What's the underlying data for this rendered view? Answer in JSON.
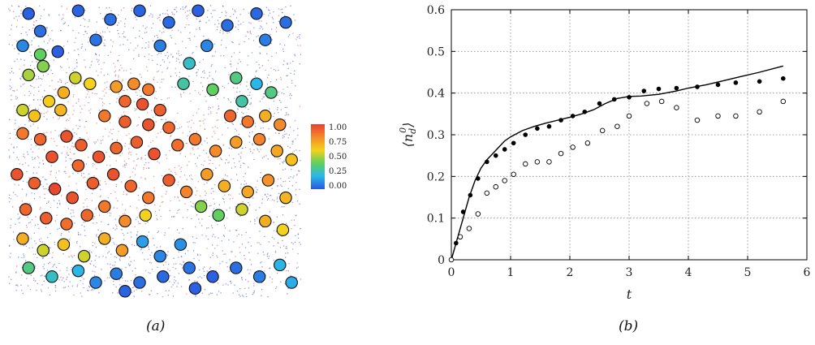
{
  "captions": {
    "a": "(a)",
    "b": "(b)"
  },
  "colorbar": {
    "ticks": [
      "1.00",
      "0.75",
      "0.50",
      "0.25",
      "0.00"
    ],
    "colors": [
      "#e8412f",
      "#f58a2a",
      "#f3d21c",
      "#5fd05f",
      "#2ab7e8",
      "#2a56e0"
    ]
  },
  "chart_data": [
    {
      "type": "scatter",
      "title": "",
      "panel": "(a)",
      "value_range": [
        0.0,
        1.0
      ],
      "points": [
        [
          0.07,
          0.03,
          0.02
        ],
        [
          0.11,
          0.09,
          0.05
        ],
        [
          0.05,
          0.14,
          0.1
        ],
        [
          0.11,
          0.17,
          0.4
        ],
        [
          0.17,
          0.16,
          0.02
        ],
        [
          0.12,
          0.21,
          0.45
        ],
        [
          0.07,
          0.24,
          0.5
        ],
        [
          0.23,
          0.25,
          0.55
        ],
        [
          0.28,
          0.27,
          0.6
        ],
        [
          0.37,
          0.28,
          0.75
        ],
        [
          0.43,
          0.27,
          0.8
        ],
        [
          0.48,
          0.29,
          0.85
        ],
        [
          0.19,
          0.3,
          0.7
        ],
        [
          0.14,
          0.33,
          0.62
        ],
        [
          0.05,
          0.36,
          0.55
        ],
        [
          0.09,
          0.38,
          0.65
        ],
        [
          0.18,
          0.36,
          0.68
        ],
        [
          0.4,
          0.33,
          0.9
        ],
        [
          0.46,
          0.34,
          0.95
        ],
        [
          0.52,
          0.36,
          0.92
        ],
        [
          0.33,
          0.38,
          0.85
        ],
        [
          0.4,
          0.4,
          0.92
        ],
        [
          0.48,
          0.41,
          0.95
        ],
        [
          0.55,
          0.42,
          0.9
        ],
        [
          0.6,
          0.27,
          0.3
        ],
        [
          0.7,
          0.29,
          0.4
        ],
        [
          0.78,
          0.25,
          0.35
        ],
        [
          0.85,
          0.27,
          0.2
        ],
        [
          0.9,
          0.3,
          0.35
        ],
        [
          0.8,
          0.33,
          0.3
        ],
        [
          0.76,
          0.38,
          0.9
        ],
        [
          0.82,
          0.4,
          0.85
        ],
        [
          0.88,
          0.38,
          0.7
        ],
        [
          0.93,
          0.41,
          0.8
        ],
        [
          0.05,
          0.44,
          0.85
        ],
        [
          0.11,
          0.46,
          0.9
        ],
        [
          0.2,
          0.45,
          0.95
        ],
        [
          0.25,
          0.48,
          0.92
        ],
        [
          0.15,
          0.52,
          0.95
        ],
        [
          0.24,
          0.55,
          0.9
        ],
        [
          0.31,
          0.52,
          0.95
        ],
        [
          0.37,
          0.49,
          0.9
        ],
        [
          0.44,
          0.47,
          0.92
        ],
        [
          0.5,
          0.51,
          0.95
        ],
        [
          0.58,
          0.48,
          0.88
        ],
        [
          0.64,
          0.46,
          0.85
        ],
        [
          0.71,
          0.5,
          0.8
        ],
        [
          0.78,
          0.47,
          0.75
        ],
        [
          0.86,
          0.46,
          0.82
        ],
        [
          0.92,
          0.5,
          0.72
        ],
        [
          0.97,
          0.53,
          0.65
        ],
        [
          0.03,
          0.58,
          0.95
        ],
        [
          0.09,
          0.61,
          0.92
        ],
        [
          0.16,
          0.63,
          0.98
        ],
        [
          0.22,
          0.66,
          0.95
        ],
        [
          0.29,
          0.61,
          0.92
        ],
        [
          0.36,
          0.58,
          0.95
        ],
        [
          0.42,
          0.62,
          0.9
        ],
        [
          0.48,
          0.66,
          0.85
        ],
        [
          0.55,
          0.6,
          0.92
        ],
        [
          0.61,
          0.64,
          0.82
        ],
        [
          0.68,
          0.58,
          0.75
        ],
        [
          0.74,
          0.62,
          0.7
        ],
        [
          0.82,
          0.64,
          0.72
        ],
        [
          0.89,
          0.6,
          0.78
        ],
        [
          0.95,
          0.66,
          0.68
        ],
        [
          0.06,
          0.7,
          0.9
        ],
        [
          0.13,
          0.73,
          0.92
        ],
        [
          0.2,
          0.75,
          0.88
        ],
        [
          0.27,
          0.72,
          0.9
        ],
        [
          0.33,
          0.69,
          0.85
        ],
        [
          0.4,
          0.74,
          0.8
        ],
        [
          0.47,
          0.72,
          0.6
        ],
        [
          0.66,
          0.69,
          0.45
        ],
        [
          0.72,
          0.72,
          0.4
        ],
        [
          0.8,
          0.7,
          0.55
        ],
        [
          0.88,
          0.74,
          0.7
        ],
        [
          0.94,
          0.77,
          0.6
        ],
        [
          0.05,
          0.8,
          0.7
        ],
        [
          0.12,
          0.84,
          0.55
        ],
        [
          0.19,
          0.82,
          0.65
        ],
        [
          0.26,
          0.86,
          0.55
        ],
        [
          0.33,
          0.8,
          0.7
        ],
        [
          0.39,
          0.84,
          0.75
        ],
        [
          0.46,
          0.81,
          0.15
        ],
        [
          0.52,
          0.86,
          0.1
        ],
        [
          0.59,
          0.82,
          0.12
        ],
        [
          0.07,
          0.9,
          0.35
        ],
        [
          0.15,
          0.93,
          0.25
        ],
        [
          0.24,
          0.91,
          0.2
        ],
        [
          0.3,
          0.95,
          0.1
        ],
        [
          0.37,
          0.92,
          0.08
        ],
        [
          0.45,
          0.95,
          0.05
        ],
        [
          0.53,
          0.93,
          0.04
        ],
        [
          0.62,
          0.9,
          0.06
        ],
        [
          0.7,
          0.93,
          0.02
        ],
        [
          0.78,
          0.9,
          0.05
        ],
        [
          0.86,
          0.93,
          0.08
        ],
        [
          0.93,
          0.89,
          0.2
        ],
        [
          0.97,
          0.95,
          0.18
        ],
        [
          0.64,
          0.97,
          0.02
        ],
        [
          0.4,
          0.98,
          0.03
        ],
        [
          0.24,
          0.02,
          0.03
        ],
        [
          0.35,
          0.05,
          0.05
        ],
        [
          0.45,
          0.02,
          0.03
        ],
        [
          0.55,
          0.06,
          0.04
        ],
        [
          0.65,
          0.02,
          0.02
        ],
        [
          0.75,
          0.07,
          0.05
        ],
        [
          0.85,
          0.03,
          0.04
        ],
        [
          0.95,
          0.06,
          0.05
        ],
        [
          0.3,
          0.12,
          0.06
        ],
        [
          0.52,
          0.14,
          0.08
        ],
        [
          0.68,
          0.14,
          0.1
        ],
        [
          0.88,
          0.12,
          0.08
        ],
        [
          0.62,
          0.2,
          0.25
        ]
      ]
    },
    {
      "type": "line",
      "title": "",
      "panel": "(b)",
      "xlabel": "t",
      "ylabel": "⟨n_d^0⟩",
      "xlim": [
        0,
        6
      ],
      "ylim": [
        0,
        0.6
      ],
      "xticks": [
        "0",
        "1",
        "2",
        "3",
        "4",
        "5",
        "6"
      ],
      "yticks": [
        "0",
        "0.1",
        "0.2",
        "0.3",
        "0.4",
        "0.5",
        "0.6"
      ],
      "grid": true,
      "series": [
        {
          "style": "line",
          "x": [
            0,
            0.1,
            0.2,
            0.3,
            0.4,
            0.5,
            0.6,
            0.7,
            0.8,
            0.9,
            1.0,
            1.2,
            1.4,
            1.6,
            1.8,
            2.0,
            2.2,
            2.4,
            2.6,
            2.8,
            3.0,
            3.2,
            3.5,
            3.8,
            4.0,
            4.3,
            4.6,
            4.9,
            5.2,
            5.6
          ],
          "y": [
            0,
            0.05,
            0.1,
            0.15,
            0.19,
            0.22,
            0.24,
            0.255,
            0.27,
            0.285,
            0.295,
            0.31,
            0.32,
            0.328,
            0.335,
            0.342,
            0.35,
            0.36,
            0.375,
            0.387,
            0.392,
            0.393,
            0.397,
            0.405,
            0.412,
            0.42,
            0.43,
            0.44,
            0.45,
            0.465
          ]
        },
        {
          "style": "filled-circles",
          "x": [
            0,
            0.08,
            0.2,
            0.32,
            0.45,
            0.6,
            0.75,
            0.9,
            1.05,
            1.25,
            1.45,
            1.65,
            1.85,
            2.05,
            2.25,
            2.5,
            2.75,
            3.0,
            3.25,
            3.5,
            3.8,
            4.15,
            4.5,
            4.8,
            5.2,
            5.6
          ],
          "y": [
            0,
            0.04,
            0.115,
            0.155,
            0.195,
            0.235,
            0.25,
            0.265,
            0.28,
            0.3,
            0.315,
            0.32,
            0.335,
            0.345,
            0.355,
            0.375,
            0.385,
            0.39,
            0.405,
            0.41,
            0.412,
            0.415,
            0.42,
            0.425,
            0.428,
            0.435
          ]
        },
        {
          "style": "open-circles",
          "x": [
            0,
            0.15,
            0.3,
            0.45,
            0.6,
            0.75,
            0.9,
            1.05,
            1.25,
            1.45,
            1.65,
            1.85,
            2.05,
            2.3,
            2.55,
            2.8,
            3.0,
            3.3,
            3.55,
            3.8,
            4.15,
            4.5,
            4.8,
            5.2,
            5.6
          ],
          "y": [
            0,
            0.055,
            0.075,
            0.11,
            0.16,
            0.175,
            0.19,
            0.205,
            0.23,
            0.235,
            0.235,
            0.255,
            0.27,
            0.28,
            0.31,
            0.32,
            0.345,
            0.375,
            0.38,
            0.365,
            0.335,
            0.345,
            0.345,
            0.355,
            0.38
          ]
        }
      ]
    }
  ]
}
